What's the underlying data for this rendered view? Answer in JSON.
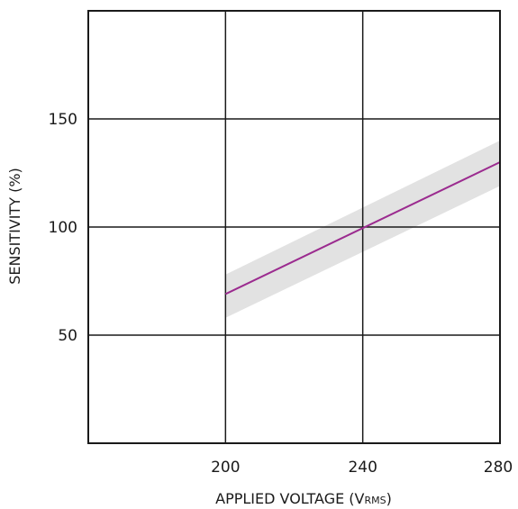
{
  "chart_data": {
    "type": "line",
    "title": "",
    "xlabel": "APPLIED VOLTAGE (V",
    "xlabel_subscript": "RMS",
    "xlabel_suffix": ")",
    "ylabel": "SENSITIVITY (%)",
    "xlim": [
      160,
      280
    ],
    "ylim": [
      0,
      200
    ],
    "x_ticks": [
      200,
      240,
      280
    ],
    "x_tick_labels": [
      "200",
      "240",
      "280"
    ],
    "y_ticks": [
      50,
      100,
      150
    ],
    "y_tick_labels": [
      "50",
      "100",
      "150"
    ],
    "grid": true,
    "series": [
      {
        "x": [
          200,
          280
        ],
        "y": [
          69,
          130
        ],
        "color": "#9b2b8f"
      }
    ],
    "tolerance_band": {
      "x": [
        200,
        280
      ],
      "upper": [
        78,
        140
      ],
      "lower": [
        58,
        119
      ],
      "color": "#e2e2e2"
    },
    "colors": {
      "line": "#9b2b8f",
      "band": "#e2e2e2",
      "grid": "#1a1a1a",
      "frame": "#1a1a1a"
    }
  }
}
